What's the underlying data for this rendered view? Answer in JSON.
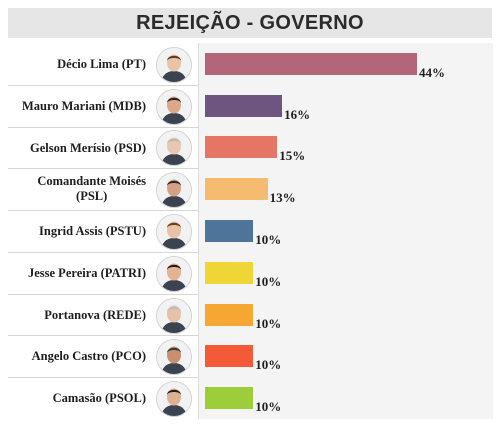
{
  "header": {
    "title": "REJEIÇÃO - GOVERNO"
  },
  "chart_data": {
    "type": "bar",
    "orientation": "horizontal",
    "title": "REJEIÇÃO - GOVERNO",
    "categories": [
      "Décio Lima (PT)",
      "Mauro Mariani (MDB)",
      "Gelson Merísio (PSD)",
      "Comandante Moisés (PSL)",
      "Ingrid Assis (PSTU)",
      "Jesse Pereira (PATRI)",
      "Portanova (REDE)",
      "Angelo Castro (PCO)",
      "Camasão (PSOL)"
    ],
    "label_lines": [
      [
        "Décio Lima (PT)"
      ],
      [
        "Mauro Mariani (MDB)"
      ],
      [
        "Gelson Merísio (PSD)"
      ],
      [
        "Comandante Moisés",
        "(PSL)"
      ],
      [
        "Ingrid Assis (PSTU)"
      ],
      [
        "Jesse Pereira (PATRI)"
      ],
      [
        "Portanova (REDE)"
      ],
      [
        "Angelo Castro (PCO)"
      ],
      [
        "Camasão (PSOL)"
      ]
    ],
    "values": [
      44,
      16,
      15,
      13,
      10,
      10,
      10,
      10,
      10
    ],
    "value_labels": [
      "44%",
      "16%",
      "15%",
      "13%",
      "10%",
      "10%",
      "10%",
      "10%",
      "10%"
    ],
    "colors": [
      "#b5657a",
      "#6d5580",
      "#e57565",
      "#f5bb6f",
      "#4e7499",
      "#efd535",
      "#f6a733",
      "#f45a38",
      "#9ecd3b"
    ],
    "xlim": [
      0,
      50
    ],
    "grid": false,
    "legend": "none"
  }
}
